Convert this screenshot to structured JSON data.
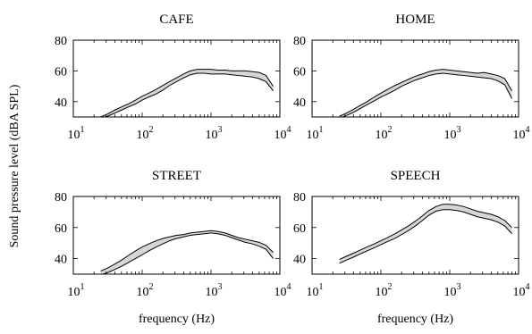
{
  "ylabel": "Sound pressure level (dBA SPL)",
  "chart_data": [
    {
      "type": "area",
      "title": "CAFE",
      "xlabel": "",
      "xscale": "log",
      "xlim": [
        10,
        10000
      ],
      "ylim": [
        30,
        80
      ],
      "yticks": [
        40,
        60,
        80
      ],
      "xticks": [
        {
          "base": "10",
          "exp": "1"
        },
        {
          "base": "10",
          "exp": "2"
        },
        {
          "base": "10",
          "exp": "3"
        },
        {
          "base": "10",
          "exp": "4"
        }
      ],
      "x": [
        25,
        31.5,
        40,
        50,
        63,
        80,
        100,
        125,
        160,
        200,
        250,
        315,
        400,
        500,
        630,
        800,
        1000,
        1250,
        1600,
        2000,
        2500,
        3150,
        4000,
        5000,
        6300,
        8000
      ],
      "lower": [
        29,
        30.5,
        32.5,
        34.5,
        36.5,
        38.5,
        41,
        43,
        45,
        47.5,
        50.5,
        53,
        55.5,
        57.5,
        58.5,
        58.5,
        58,
        58,
        58,
        57.5,
        57,
        56.5,
        56,
        55,
        53,
        47
      ],
      "upper": [
        30,
        32,
        34.5,
        36.5,
        38.5,
        41,
        43.5,
        45.5,
        48,
        50.5,
        53,
        55.5,
        58,
        60,
        61,
        61,
        61,
        60.5,
        60.5,
        60,
        60,
        60,
        59.5,
        59,
        57,
        50
      ]
    },
    {
      "type": "area",
      "title": "HOME",
      "xlabel": "",
      "xscale": "log",
      "xlim": [
        10,
        10000
      ],
      "ylim": [
        30,
        80
      ],
      "yticks": [
        40,
        60,
        80
      ],
      "xticks": [
        {
          "base": "10",
          "exp": "1"
        },
        {
          "base": "10",
          "exp": "2"
        },
        {
          "base": "10",
          "exp": "3"
        },
        {
          "base": "10",
          "exp": "4"
        }
      ],
      "x": [
        25,
        31.5,
        40,
        50,
        63,
        80,
        100,
        125,
        160,
        200,
        250,
        315,
        400,
        500,
        630,
        800,
        1000,
        1250,
        1600,
        2000,
        2500,
        3150,
        4000,
        5000,
        6300,
        8000
      ],
      "lower": [
        29,
        31,
        33,
        35.5,
        38,
        40.5,
        43,
        45,
        47.5,
        50,
        52,
        54,
        55.5,
        57,
        58,
        58.5,
        58,
        57.5,
        57,
        56.5,
        56,
        55.5,
        55,
        53.5,
        51,
        42
      ],
      "upper": [
        30.5,
        32.5,
        35,
        37.5,
        40,
        43,
        45.5,
        48,
        50.5,
        52.5,
        54.5,
        56.5,
        58,
        59.5,
        60.5,
        61,
        60.5,
        60,
        59.5,
        59,
        58.5,
        59,
        58,
        57,
        55,
        47
      ]
    },
    {
      "type": "area",
      "title": "STREET",
      "xlabel": "frequency (Hz)",
      "xscale": "log",
      "xlim": [
        10,
        10000
      ],
      "ylim": [
        30,
        80
      ],
      "yticks": [
        40,
        60,
        80
      ],
      "xticks": [
        {
          "base": "10",
          "exp": "1"
        },
        {
          "base": "10",
          "exp": "2"
        },
        {
          "base": "10",
          "exp": "3"
        },
        {
          "base": "10",
          "exp": "4"
        }
      ],
      "x": [
        25,
        31.5,
        40,
        50,
        63,
        80,
        100,
        125,
        160,
        200,
        250,
        315,
        400,
        500,
        630,
        800,
        1000,
        1250,
        1600,
        2000,
        2500,
        3150,
        4000,
        5000,
        6300,
        8000
      ],
      "lower": [
        29.5,
        31,
        33,
        35,
        37.5,
        40,
        42.5,
        45,
        47.5,
        49.5,
        51.5,
        53,
        54,
        55,
        55.5,
        56,
        56.5,
        56,
        55,
        53.5,
        52,
        50.5,
        49.5,
        48,
        46,
        40
      ],
      "upper": [
        32,
        34,
        36.5,
        39,
        42,
        45,
        47.5,
        49.5,
        51.5,
        53,
        54,
        55,
        55.5,
        56.5,
        57,
        57.5,
        58,
        57.5,
        56.5,
        55,
        53.5,
        52.5,
        51.5,
        50.5,
        48.5,
        44
      ]
    },
    {
      "type": "area",
      "title": "SPEECH",
      "xlabel": "frequency (Hz)",
      "xscale": "log",
      "xlim": [
        10,
        10000
      ],
      "ylim": [
        30,
        80
      ],
      "yticks": [
        40,
        60,
        80
      ],
      "xticks": [
        {
          "base": "10",
          "exp": "1"
        },
        {
          "base": "10",
          "exp": "2"
        },
        {
          "base": "10",
          "exp": "3"
        },
        {
          "base": "10",
          "exp": "4"
        }
      ],
      "x": [
        25,
        31.5,
        40,
        50,
        63,
        80,
        100,
        125,
        160,
        200,
        250,
        315,
        400,
        500,
        630,
        800,
        1000,
        1250,
        1600,
        2000,
        2500,
        3150,
        4000,
        5000,
        6300,
        8000
      ],
      "lower": [
        37,
        39,
        41,
        43,
        45,
        47,
        49,
        51,
        53,
        55.5,
        58,
        61,
        64.5,
        68,
        70.5,
        71.5,
        71.5,
        71,
        70,
        68.5,
        67,
        66,
        65,
        63.5,
        61,
        56
      ],
      "upper": [
        39.5,
        41.5,
        43.5,
        45.5,
        47.5,
        49.5,
        51.5,
        53.5,
        56,
        58.5,
        61,
        64,
        67.5,
        71,
        73.5,
        75,
        75,
        74.5,
        73.5,
        72,
        70.5,
        69.5,
        68.5,
        67,
        64.5,
        60
      ]
    }
  ]
}
